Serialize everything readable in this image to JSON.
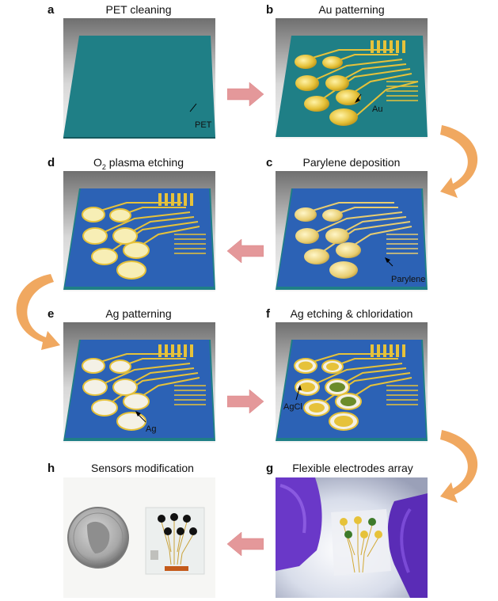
{
  "panels": {
    "a": {
      "letter": "a",
      "title": "PET cleaning",
      "callout": "PET"
    },
    "b": {
      "letter": "b",
      "title": "Au patterning",
      "callout": "Au"
    },
    "c": {
      "letter": "c",
      "title": "Parylene deposition",
      "callout": "Parylene"
    },
    "d": {
      "letter": "d",
      "title_main": "O",
      "title_sub": "2",
      "title_rest": " plasma etching"
    },
    "e": {
      "letter": "e",
      "title": "Ag patterning",
      "callout": "Ag"
    },
    "f": {
      "letter": "f",
      "title": "Ag etching & chloridation",
      "callout": "AgCl"
    },
    "g": {
      "letter": "g",
      "title": "Flexible electrodes array"
    },
    "h": {
      "letter": "h",
      "title": "Sensors modification"
    }
  },
  "colors": {
    "pet": "#1f7f86",
    "parylene": "#2c62b5",
    "gold": "#e6c23a",
    "silver": "#f4f1e6",
    "agcl": "#6c8c2a",
    "arrow_straight": "#e4989a",
    "arrow_curved": "#f0a860",
    "glove": "#6a38c8"
  }
}
